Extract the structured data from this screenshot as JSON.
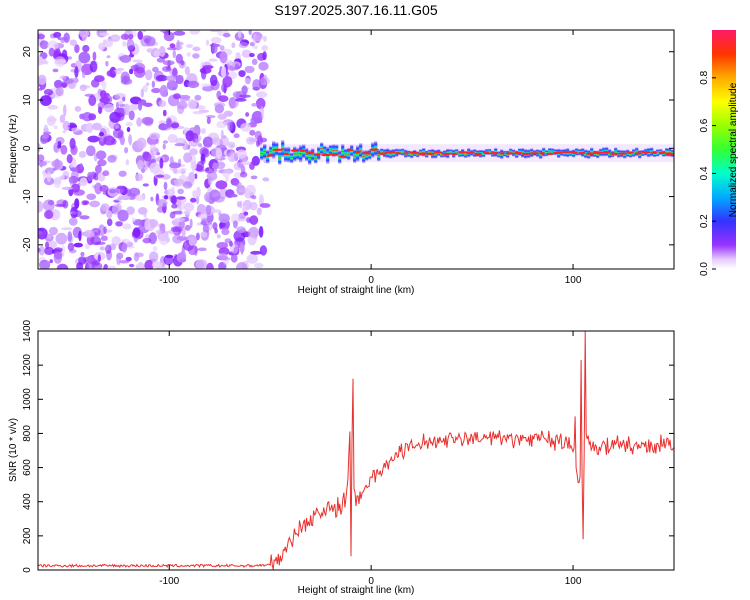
{
  "chart_data": [
    {
      "type": "heatmap",
      "title": "S197.2025.307.16.11.G05",
      "xlabel": "Height of straight line (km)",
      "ylabel": "Frequency (Hz)",
      "xlim": [
        -165,
        150
      ],
      "ylim": [
        -25,
        24.5
      ],
      "xticks": [
        -100,
        0,
        100
      ],
      "yticks": [
        -20,
        -10,
        0,
        10,
        20
      ],
      "colorbar": {
        "label": "Normalized spectral amplitude",
        "range": [
          0.0,
          1.0
        ],
        "ticks": [
          0.0,
          0.2,
          0.4,
          0.6,
          0.8
        ]
      },
      "regions": [
        {
          "name": "noise",
          "x_range": [
            -165,
            -55
          ],
          "y_range": [
            -25,
            24.5
          ],
          "amplitude": 0.1
        },
        {
          "name": "signal-band",
          "x_range": [
            -55,
            150
          ],
          "center_freq_hz": -1,
          "width_hz": 2,
          "peak_amplitude": 1.0
        }
      ]
    },
    {
      "type": "line",
      "xlabel": "Height of straight line (km)",
      "ylabel": "SNR (10 * v/v)",
      "xlim": [
        -165,
        150
      ],
      "ylim": [
        0,
        1400
      ],
      "xticks": [
        -100,
        0,
        100
      ],
      "yticks": [
        0,
        200,
        400,
        600,
        800,
        1000,
        1200,
        1400
      ],
      "color": "#e8312e",
      "series": [
        {
          "name": "SNR",
          "x": [
            -165,
            -100,
            -60,
            -50,
            -45,
            -40,
            -35,
            -30,
            -25,
            -20,
            -15,
            -12,
            -10,
            -9,
            -8,
            -5,
            0,
            5,
            10,
            15,
            20,
            25,
            30,
            40,
            50,
            60,
            70,
            80,
            90,
            95,
            100,
            103,
            105,
            106,
            107,
            108,
            110,
            115,
            120,
            130,
            140,
            150
          ],
          "y": [
            25,
            25,
            25,
            30,
            80,
            180,
            250,
            300,
            340,
            360,
            380,
            420,
            950,
            500,
            420,
            460,
            530,
            600,
            640,
            690,
            720,
            740,
            760,
            770,
            770,
            770,
            770,
            770,
            760,
            740,
            720,
            500,
            560,
            800,
            780,
            740,
            730,
            730,
            730,
            730,
            730,
            730
          ],
          "spikes": [
            {
              "x": -9,
              "y": 1120
            },
            {
              "x": -10,
              "y": 80
            },
            {
              "x": 101,
              "y": 900
            },
            {
              "x": 104,
              "y": 1230
            },
            {
              "x": 105,
              "y": 180
            },
            {
              "x": 106,
              "y": 1400
            }
          ],
          "noise_amplitude": 50
        }
      ]
    }
  ]
}
